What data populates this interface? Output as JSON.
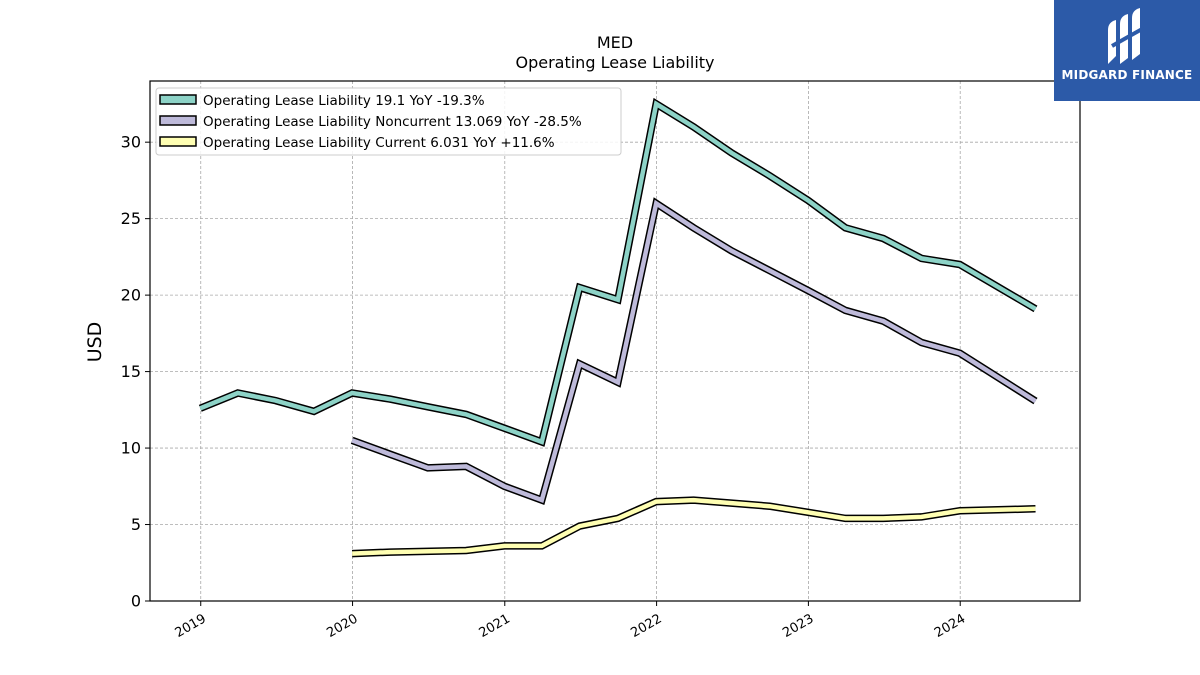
{
  "chart_data": {
    "type": "line",
    "title": "MED",
    "subtitle": "Operating Lease Liability",
    "xlabel": "",
    "ylabel": "USD",
    "xlim": [
      "2018-09-01",
      "2024-10-15"
    ],
    "ylim": [
      0,
      34
    ],
    "yticks": [
      0,
      5,
      10,
      15,
      20,
      25,
      30
    ],
    "xticks": [
      "2019",
      "2020",
      "2021",
      "2022",
      "2023",
      "2024"
    ],
    "grid": true,
    "legend_position": "top-left",
    "series": [
      {
        "name": "Operating Lease Liability  19.1 YoY -19.3%",
        "color": "#8dd3c7",
        "points": [
          [
            "2018-12-31",
            12.6
          ],
          [
            "2019-03-31",
            13.6
          ],
          [
            "2019-06-30",
            13.1
          ],
          [
            "2019-09-30",
            12.4
          ],
          [
            "2019-12-31",
            13.6
          ],
          [
            "2020-03-31",
            13.2
          ],
          [
            "2020-06-30",
            12.7
          ],
          [
            "2020-09-30",
            12.2
          ],
          [
            "2020-12-31",
            11.3
          ],
          [
            "2021-03-31",
            10.4
          ],
          [
            "2021-06-30",
            20.5
          ],
          [
            "2021-09-30",
            19.7
          ],
          [
            "2021-12-31",
            32.5
          ],
          [
            "2022-03-31",
            31.0
          ],
          [
            "2022-06-30",
            29.3
          ],
          [
            "2022-09-30",
            27.8
          ],
          [
            "2022-12-31",
            26.2
          ],
          [
            "2023-03-31",
            24.4
          ],
          [
            "2023-06-30",
            23.7
          ],
          [
            "2023-09-30",
            22.4
          ],
          [
            "2023-12-31",
            22.0
          ],
          [
            "2024-06-30",
            19.1
          ]
        ]
      },
      {
        "name": "Operating Lease Liability Noncurrent  13.069 YoY -28.5%",
        "color": "#bebada",
        "points": [
          [
            "2019-12-31",
            10.5
          ],
          [
            "2020-03-31",
            9.6
          ],
          [
            "2020-06-30",
            8.7
          ],
          [
            "2020-09-30",
            8.8
          ],
          [
            "2020-12-31",
            7.5
          ],
          [
            "2021-03-31",
            6.6
          ],
          [
            "2021-06-30",
            15.5
          ],
          [
            "2021-09-30",
            14.3
          ],
          [
            "2021-12-31",
            26.0
          ],
          [
            "2022-03-31",
            24.4
          ],
          [
            "2022-06-30",
            22.9
          ],
          [
            "2022-09-30",
            21.6
          ],
          [
            "2022-12-31",
            20.3
          ],
          [
            "2023-03-31",
            19.0
          ],
          [
            "2023-06-30",
            18.3
          ],
          [
            "2023-09-30",
            16.9
          ],
          [
            "2023-12-31",
            16.2
          ],
          [
            "2024-06-30",
            13.069
          ]
        ]
      },
      {
        "name": "Operating Lease Liability Current  6.031 YoY +11.6%",
        "color": "#ffffb3",
        "points": [
          [
            "2019-12-31",
            3.1
          ],
          [
            "2020-03-31",
            3.2
          ],
          [
            "2020-09-30",
            3.3
          ],
          [
            "2020-12-31",
            3.6
          ],
          [
            "2021-03-31",
            3.6
          ],
          [
            "2021-06-30",
            4.9
          ],
          [
            "2021-09-30",
            5.4
          ],
          [
            "2021-12-31",
            6.5
          ],
          [
            "2022-03-31",
            6.6
          ],
          [
            "2022-06-30",
            6.4
          ],
          [
            "2022-09-30",
            6.2
          ],
          [
            "2022-12-31",
            5.8
          ],
          [
            "2023-03-31",
            5.4
          ],
          [
            "2023-06-30",
            5.4
          ],
          [
            "2023-09-30",
            5.5
          ],
          [
            "2023-12-31",
            5.9
          ],
          [
            "2024-06-30",
            6.031
          ]
        ]
      }
    ]
  },
  "logo": {
    "text": "MIDGARD FINANCE",
    "color": "#2c5aa8"
  }
}
